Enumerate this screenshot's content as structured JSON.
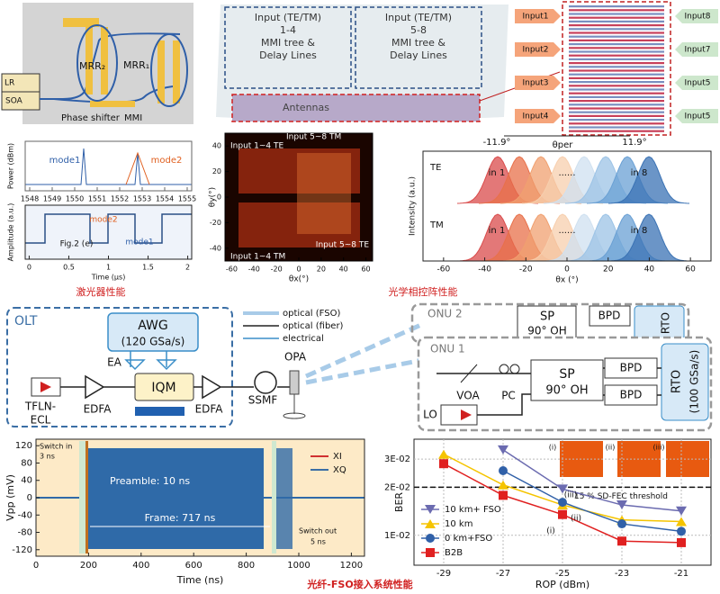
{
  "chip": {
    "lr": "LR",
    "soa": "SOA",
    "mrr2": "MRR₂",
    "mrr1": "MRR₁",
    "phase_shifter": "Phase shifter",
    "mmi": "MMI"
  },
  "opa_chip": {
    "block1": [
      "Input (TE/TM)",
      "1-4",
      "MMI tree &",
      "Delay Lines"
    ],
    "block2": [
      "Input (TE/TM)",
      "5-8",
      "MMI tree &",
      "Delay Lines"
    ],
    "antennas": "Antennas"
  },
  "opa_inputs": {
    "left": [
      "Input1",
      "Input2",
      "Input3",
      "Input4"
    ],
    "right": [
      "Input8",
      "Input7",
      "Input5",
      "Input5"
    ]
  },
  "captions": {
    "laser": "激光器性能",
    "opa": "光学相控阵性能",
    "system": "光纤-FSO接入系统性能"
  },
  "system": {
    "olt": "OLT",
    "awg": [
      "AWG",
      "(120 GSa/s)"
    ],
    "ea": "EA",
    "iqm": "IQM",
    "tfln": [
      "TFLN-",
      "ECL"
    ],
    "edfa1": "EDFA",
    "edfa2": "EDFA",
    "ssmf": "SSMF",
    "opa": "OPA",
    "legend": [
      "optical (FSO)",
      "optical (fiber)",
      "electrical"
    ],
    "onu2": {
      "title": "ONU 2",
      "sp": [
        "SP",
        "90° OH"
      ],
      "bpd": "BPD",
      "rto": "RTO"
    },
    "onu1": {
      "title": "ONU 1",
      "voa": "VOA",
      "pc": "PC",
      "sp": [
        "SP",
        "90° OH"
      ],
      "bpd1": "BPD",
      "bpd2": "BPD",
      "rto": [
        "RTO",
        "(100 GSa/s)"
      ],
      "lo": "LO"
    }
  },
  "chart_data": [
    {
      "type": "line",
      "y_label": "Power (dBm)",
      "xticks": [
        1548,
        1549,
        1550,
        1551,
        1552,
        1553,
        1554,
        1555
      ],
      "xlim": [
        1547.8,
        1555.2
      ],
      "annotations": [
        "mode1",
        "mode2"
      ]
    },
    {
      "type": "line",
      "y_label": "Amplitude (a.u.)",
      "x_label": "Time (μs)",
      "xticks": [
        0,
        0.5,
        1,
        1.5,
        2
      ],
      "xlim": [
        -0.05,
        2.05
      ],
      "annotations": [
        "mode2",
        "mode1",
        "Fig.2 (e)"
      ]
    },
    {
      "type": "heatmap",
      "x_label": "θx(°)",
      "y_label": "θy(°)",
      "xticks": [
        -60,
        -40,
        -20,
        0,
        20,
        40,
        60
      ],
      "yticks": [
        -40,
        -20,
        0,
        20,
        40
      ],
      "xlim": [
        -66,
        66
      ],
      "ylim": [
        -50,
        50
      ],
      "annotations": [
        "Input 1~4 TE",
        "Input 5~8  TM",
        "Input 5~8  TE",
        "Input 1~4  TM"
      ]
    },
    {
      "type": "area",
      "x_label": "θx (°)",
      "y_label": "Intensity (a.u.)",
      "xticks": [
        -60,
        -40,
        -20,
        0,
        20,
        40,
        60
      ],
      "xlim": [
        -70,
        70
      ],
      "annotations": {
        "left_angle": "-11.9°",
        "center": "θper",
        "right_angle": "11.9°",
        "te": "TE",
        "tm": "TM",
        "in1_te": "in 1",
        "in8_te": "in 8",
        "dots_te": "......",
        "in1_tm": "in 1",
        "in8_tm": "in 8",
        "dots_tm": "......"
      }
    },
    {
      "type": "line",
      "y_label": "Vpp (mV)",
      "x_label": "Time (ns)",
      "xticks": [
        0,
        200,
        400,
        600,
        800,
        1000,
        1200
      ],
      "yticks": [
        -120,
        -80,
        -40,
        0,
        40,
        80,
        120
      ],
      "xlim": [
        0,
        1250
      ],
      "ylim": [
        -135,
        135
      ],
      "legend": [
        {
          "name": "XI",
          "color": "#d03030"
        },
        {
          "name": "XQ",
          "color": "#3a6ea5"
        }
      ],
      "annotations": {
        "switch_in": [
          "Switch in",
          "3 ns"
        ],
        "preamble": "Preamble: 10 ns",
        "frame": "Frame: 717 ns",
        "switch_out": [
          "Switch out",
          "5 ns"
        ]
      }
    },
    {
      "type": "line",
      "y_label": "BER",
      "x_label": "ROP (dBm)",
      "log_y": true,
      "grid": true,
      "xlim": [
        -30,
        -20
      ],
      "ylim": [
        0.0065,
        0.04
      ],
      "xticks": [
        -29,
        -27,
        -25,
        -23,
        -21
      ],
      "yticks": [
        {
          "value": 0.01,
          "label": "1E-02"
        },
        {
          "value": 0.02,
          "label": "2E-02"
        },
        {
          "value": 0.03,
          "label": "3E-02"
        }
      ],
      "threshold": {
        "value": 0.02,
        "label": "15 % SD-FEC threshold"
      },
      "x": [
        -29,
        -27,
        -25,
        -23,
        -21
      ],
      "series": [
        {
          "name": "10 km+ FSO",
          "color": "#6b6bb0",
          "marker": "triangle-down",
          "values": [
            null,
            0.0343,
            0.0195,
            0.0155,
            0.0142
          ]
        },
        {
          "name": "10 km",
          "color": "#f5c400",
          "marker": "triangle-up",
          "values": [
            0.0322,
            0.0207,
            0.0155,
            0.0125,
            0.0122
          ]
        },
        {
          "name": "0 km+FSO",
          "color": "#3060a8",
          "marker": "circle",
          "values": [
            null,
            0.0254,
            0.0161,
            0.0118,
            0.0106
          ]
        },
        {
          "name": "B2B",
          "color": "#e02020",
          "marker": "square",
          "values": [
            0.0281,
            0.0178,
            0.0135,
            0.0092,
            0.009
          ]
        }
      ],
      "annotations": [
        "(i)",
        "(ii)",
        "(iii)"
      ],
      "insets": [
        "(i)",
        "(ii)",
        "(iii)"
      ]
    }
  ]
}
